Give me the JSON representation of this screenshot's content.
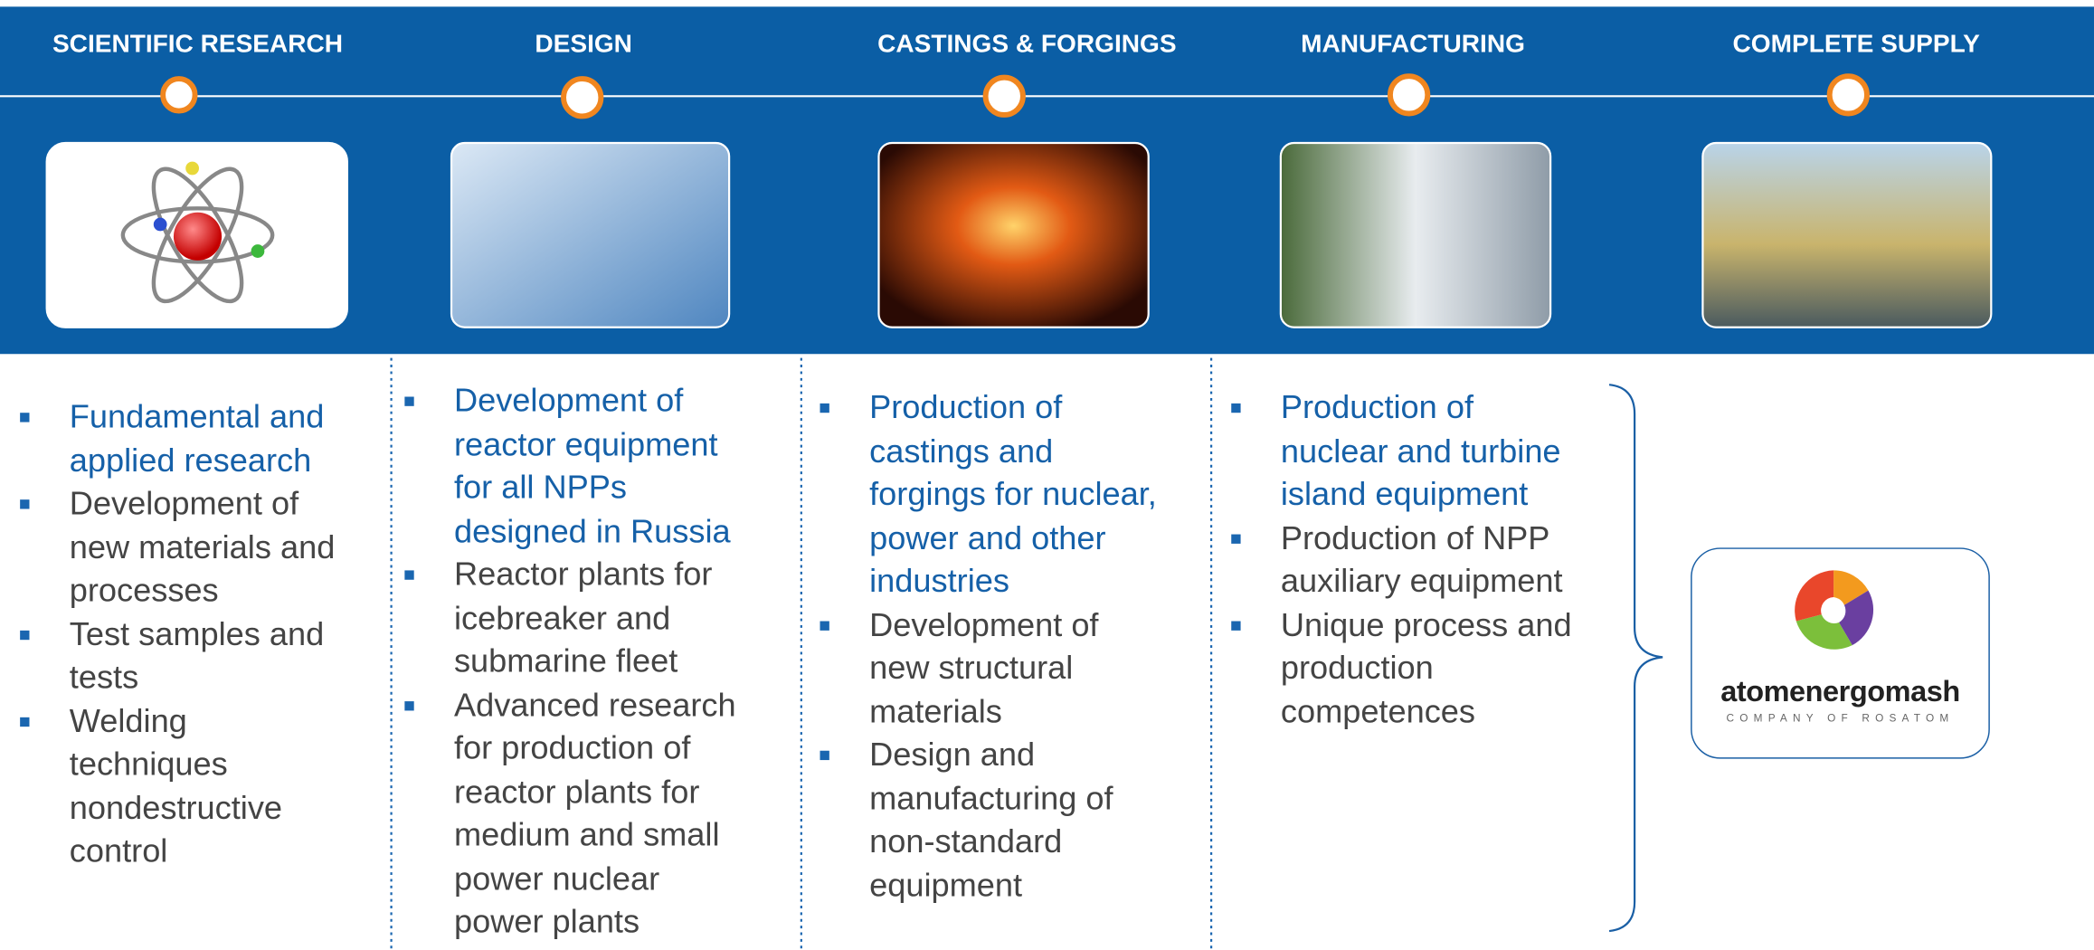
{
  "stages": [
    {
      "title": "SCIENTIFIC RESEARCH",
      "items": [
        {
          "text": "Fundamental and applied research",
          "highlight": true
        },
        {
          "text": "Development of new materials and processes",
          "highlight": false
        },
        {
          "text": "Test samples and tests",
          "highlight": false
        },
        {
          "text": "Welding techniques nondestructive control",
          "highlight": false
        }
      ]
    },
    {
      "title": "DESIGN",
      "items": [
        {
          "text": "Development of reactor equipment for all NPPs designed in Russia",
          "highlight": true
        },
        {
          "text": "Reactor plants for icebreaker and submarine fleet",
          "highlight": false
        },
        {
          "text": "Advanced research for production of reactor plants for medium and small power nuclear power plants",
          "highlight": false
        }
      ]
    },
    {
      "title": "CASTINGS & FORGINGS",
      "items": [
        {
          "text": "Production of castings and forgings for nuclear, power and other industries",
          "highlight": true
        },
        {
          "text": "Development of new structural materials",
          "highlight": false
        },
        {
          "text": "Design and manufacturing of non-standard equipment",
          "highlight": false
        }
      ]
    },
    {
      "title": "MANUFACTURING",
      "items": [
        {
          "text": "Production of nuclear and turbine island equipment",
          "highlight": true
        },
        {
          "text": "Production of NPP auxiliary equipment",
          "highlight": false
        },
        {
          "text": "Unique process and production competences",
          "highlight": false
        }
      ]
    },
    {
      "title": "COMPLETE SUPPLY",
      "items": []
    }
  ],
  "logo": {
    "name": "atomenergomash",
    "tagline": "COMPANY OF ROSATOM"
  }
}
